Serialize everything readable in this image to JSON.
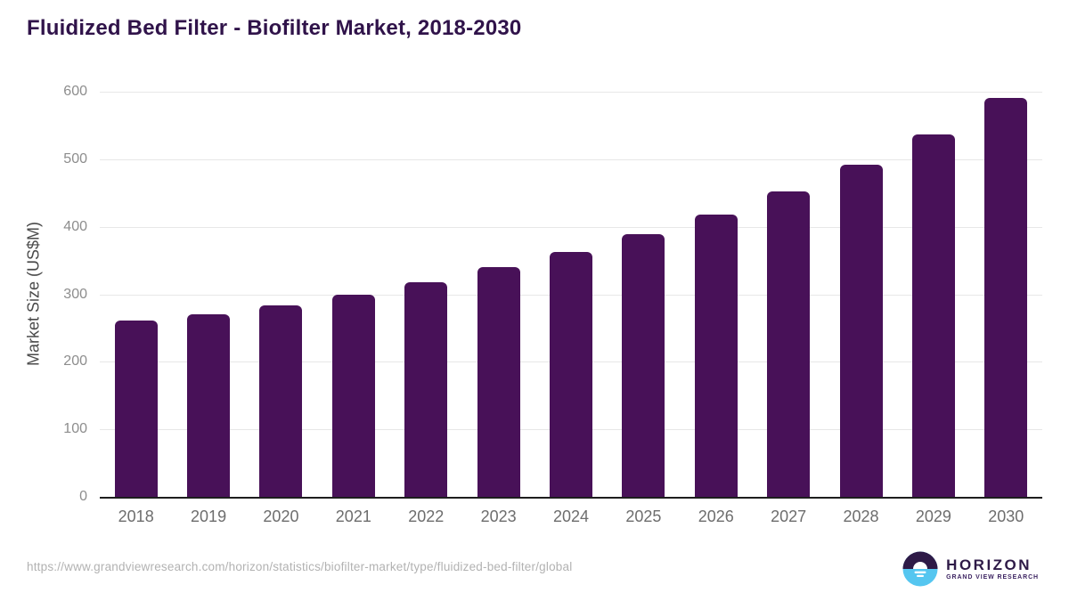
{
  "header": {
    "title": "Fluidized Bed Filter - Biofilter Market, 2018-2030"
  },
  "chart_data": {
    "type": "bar",
    "title": "Fluidized Bed Filter - Biofilter Market, 2018-2030",
    "categories": [
      "2018",
      "2019",
      "2020",
      "2021",
      "2022",
      "2023",
      "2024",
      "2025",
      "2026",
      "2027",
      "2028",
      "2029",
      "2030"
    ],
    "values": [
      261,
      271,
      284,
      300,
      318,
      340,
      362,
      389,
      418,
      452,
      492,
      537,
      591
    ],
    "xlabel": "",
    "ylabel": "Market Size (US$M)",
    "ylim": [
      0,
      600
    ],
    "ytick_interval": 100,
    "yticks": [
      0,
      100,
      200,
      300,
      400,
      500,
      600
    ],
    "grid": true,
    "legend_position": "none",
    "bar_color": "#481158"
  },
  "footer": {
    "source_url": "https://www.grandviewresearch.com/horizon/statistics/biofilter-market/type/fluidized-bed-filter/global",
    "logo": {
      "icon": "sun-over-horizon-icon",
      "name": "HORIZON",
      "subtitle": "GRAND VIEW RESEARCH"
    }
  },
  "colors": {
    "title": "#30134a",
    "bar": "#481158",
    "axis_line": "#1e1e1e",
    "gridline": "#e7e7e7",
    "ytick_label": "#8d8d8d",
    "xtick_label": "#6d6d6d",
    "url": "#b2b2b2",
    "logo_purple": "#2e1a47",
    "logo_blue": "#55c6f0"
  }
}
